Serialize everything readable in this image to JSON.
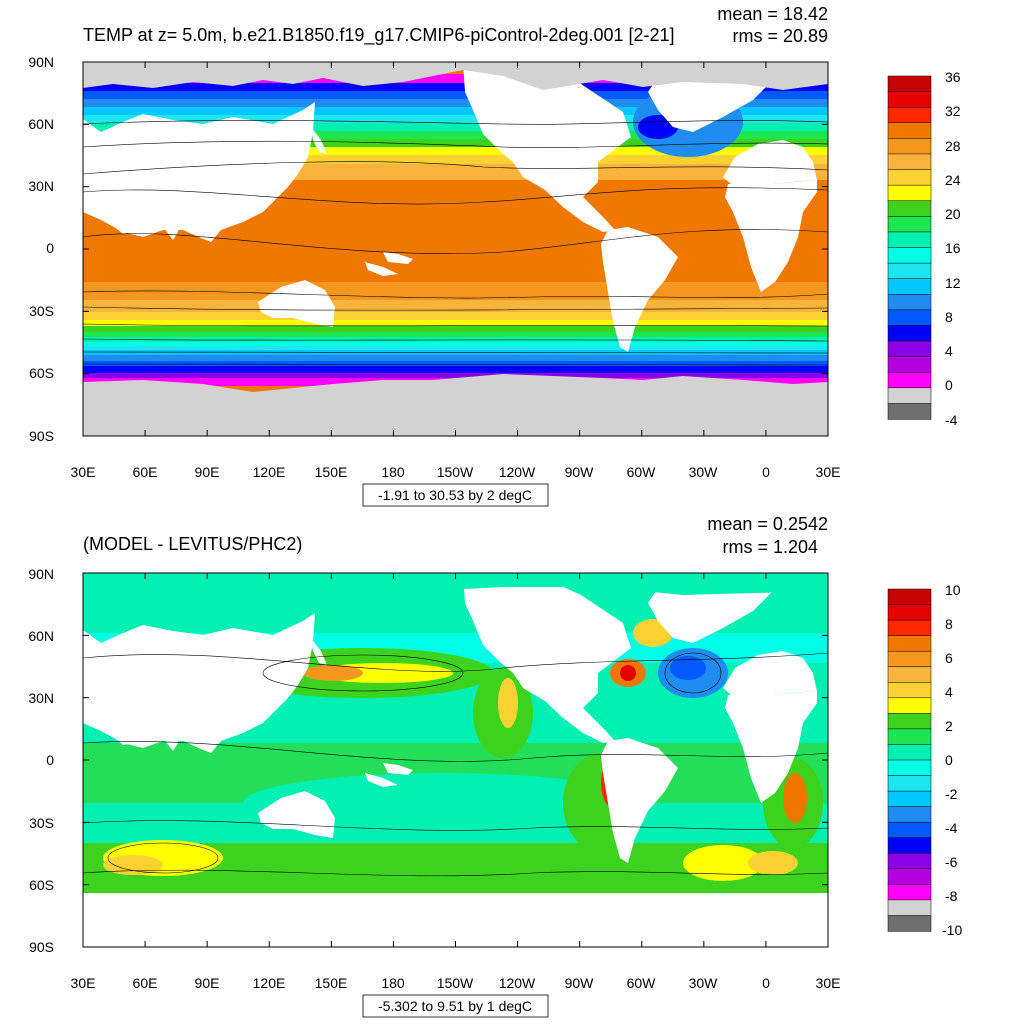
{
  "panels": [
    {
      "title": "TEMP at z=   5.0m, b.e21.B1850.f19_g17.CMIP6-piControl-2deg.001 [2-21]",
      "mean_text": "mean = 18.42",
      "rms_text": "rms = 20.89",
      "range_text": "-1.91 to 30.53 by 2 degC",
      "lat_ticks": [
        "90N",
        "60N",
        "30N",
        "0",
        "30S",
        "60S",
        "90S"
      ],
      "lon_ticks": [
        "30E",
        "60E",
        "90E",
        "120E",
        "150E",
        "180",
        "150W",
        "120W",
        "90W",
        "60W",
        "30W",
        "0",
        "30E"
      ],
      "colorbar": {
        "labels": [
          "36",
          "32",
          "28",
          "24",
          "20",
          "16",
          "12",
          "8",
          "4",
          "0",
          "-4"
        ],
        "colors": [
          "#c80000",
          "#e60000",
          "#ff2800",
          "#f07800",
          "#f5961e",
          "#fab43c",
          "#fcd232",
          "#ffff00",
          "#3cd21e",
          "#1ee650",
          "#00f0b4",
          "#00ffe6",
          "#1ee6f0",
          "#00c8ff",
          "#1e8cf0",
          "#005aff",
          "#0000ff",
          "#8c00e6",
          "#b400dc",
          "#ff00ff",
          "#d2d2d2",
          "#6e6e6e"
        ]
      }
    },
    {
      "title": "(MODEL - LEVITUS/PHC2)",
      "mean_text": "mean = 0.2542",
      "rms_text": "rms = 1.204",
      "range_text": "-5.302 to 9.51 by 1 degC",
      "lat_ticks": [
        "90N",
        "60N",
        "30N",
        "0",
        "30S",
        "60S",
        "90S"
      ],
      "lon_ticks": [
        "30E",
        "60E",
        "90E",
        "120E",
        "150E",
        "180",
        "150W",
        "120W",
        "90W",
        "60W",
        "30W",
        "0",
        "30E"
      ],
      "colorbar": {
        "labels": [
          "10",
          "8",
          "6",
          "4",
          "2",
          "0",
          "-2",
          "-4",
          "-6",
          "-8",
          "-10"
        ],
        "colors": [
          "#c80000",
          "#e60000",
          "#ff2800",
          "#f07800",
          "#f5961e",
          "#fab43c",
          "#fcd232",
          "#ffff00",
          "#3cd21e",
          "#1ee650",
          "#00f0b4",
          "#00ffe6",
          "#1ee6f0",
          "#00c8ff",
          "#1e8cf0",
          "#005aff",
          "#0000ff",
          "#8c00e6",
          "#b400dc",
          "#ff00ff",
          "#d2d2d2",
          "#6e6e6e"
        ]
      }
    }
  ]
}
